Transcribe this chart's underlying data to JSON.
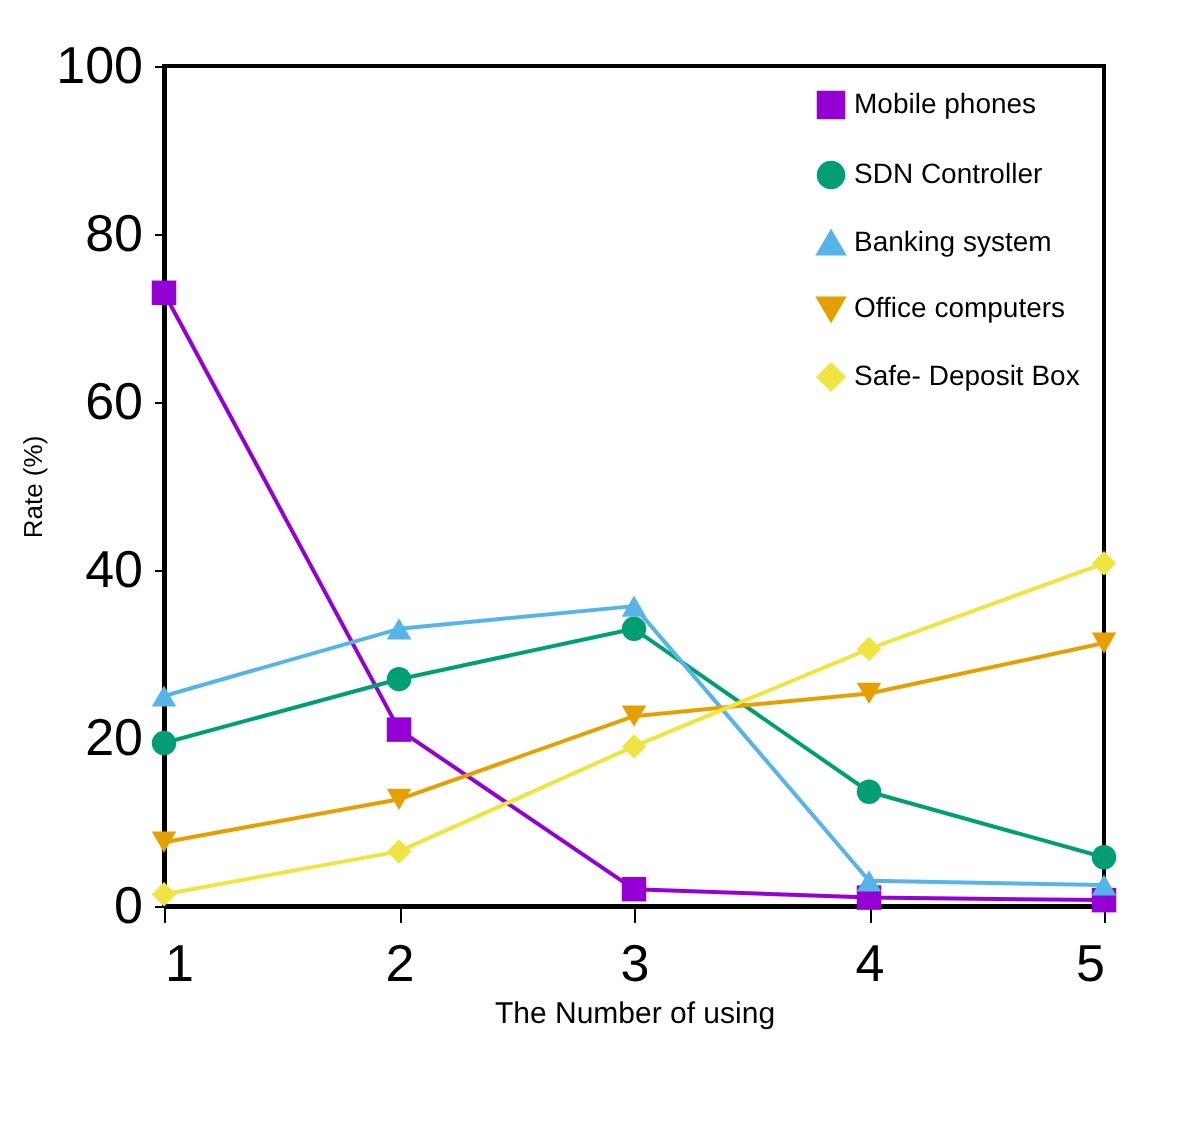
{
  "chart_data": {
    "type": "line",
    "xlabel": "The Number of using",
    "ylabel": "Rate (%)",
    "x": [
      1,
      2,
      3,
      4,
      5
    ],
    "xlim": [
      1,
      5
    ],
    "xticks": [
      1,
      2,
      3,
      4,
      5
    ],
    "ylim": [
      0,
      100
    ],
    "yticks": [
      0,
      20,
      40,
      60,
      80,
      100
    ],
    "grid": false,
    "legend": "top right",
    "line_style": "solid",
    "series": [
      {
        "name": "Mobile phones",
        "color": "#9400d3",
        "marker": "square",
        "values": [
          73,
          21,
          2,
          1,
          0.7
        ]
      },
      {
        "name": "SDN Controller",
        "color": "#009e73",
        "marker": "circle",
        "values": [
          19.4,
          27,
          33,
          13.6,
          5.8
        ]
      },
      {
        "name": "Banking system",
        "color": "#56b4e9",
        "marker": "triangle",
        "values": [
          25,
          33,
          35.7,
          3,
          2.5
        ]
      },
      {
        "name": "Office computers",
        "color": "#e69f00",
        "marker": "triangle-down",
        "values": [
          7.6,
          12.7,
          22.6,
          25.3,
          31.3
        ]
      },
      {
        "name": "Safe- Deposit Box",
        "color": "#f0e442",
        "marker": "diamond",
        "values": [
          1.4,
          6.5,
          19,
          30.6,
          40.8
        ]
      }
    ]
  }
}
